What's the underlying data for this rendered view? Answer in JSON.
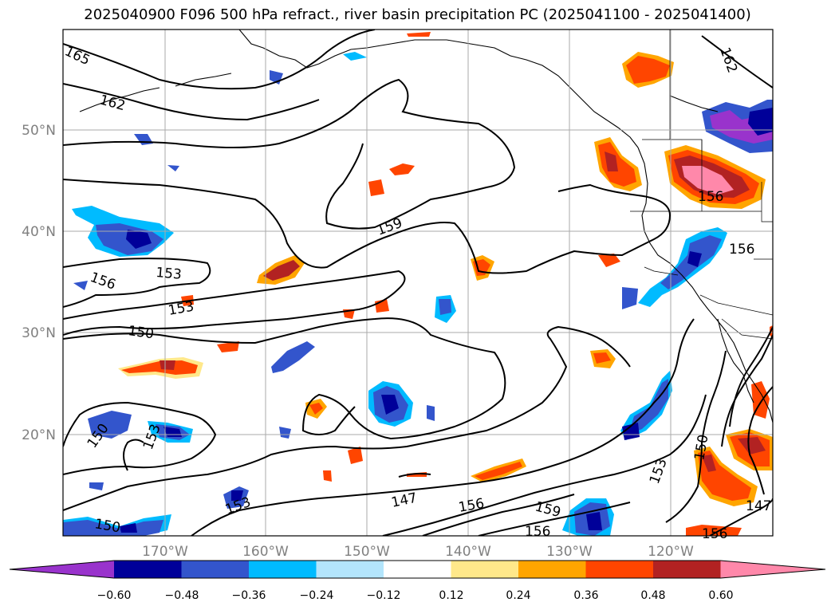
{
  "title": "2025040900 F096 500 hPa refract., river basin precipitation PC (2025041100 - 2025041400)",
  "map": {
    "lat_ticks": [
      "50°N",
      "40°N",
      "30°N",
      "20°N"
    ],
    "lon_ticks": [
      "170°W",
      "160°W",
      "150°W",
      "140°W",
      "130°W",
      "120°W"
    ],
    "contour_labels": [
      "165",
      "162",
      "162",
      "159",
      "156",
      "156",
      "156",
      "156",
      "156",
      "156",
      "153",
      "153",
      "153",
      "153",
      "153",
      "150",
      "150",
      "150",
      "150",
      "147",
      "147",
      "159"
    ]
  },
  "colorbar": {
    "ticks": [
      "−0.60",
      "−0.48",
      "−0.36",
      "−0.24",
      "−0.12",
      "0.12",
      "0.24",
      "0.36",
      "0.48",
      "0.60"
    ],
    "colors": [
      "#9933cc",
      "#000099",
      "#3355cc",
      "#00bbff",
      "#b3e5fc",
      "#ffffff",
      "#ffe88a",
      "#ffa500",
      "#ff4500",
      "#b22222",
      "#ff88aa"
    ]
  }
}
